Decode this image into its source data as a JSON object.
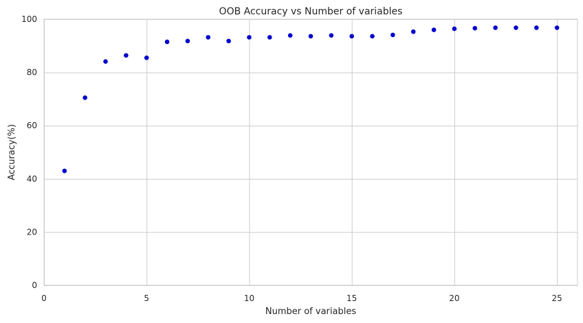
{
  "chart_data": {
    "type": "scatter",
    "title": "OOB Accuracy vs Number of variables",
    "xlabel": "Number of variables",
    "ylabel": "Accuracy(%)",
    "xlim": [
      0,
      26
    ],
    "ylim": [
      0,
      100
    ],
    "xticks": [
      0,
      5,
      10,
      15,
      20,
      25
    ],
    "yticks": [
      0,
      20,
      40,
      60,
      80,
      100
    ],
    "grid": true,
    "marker_color": "#0000cc",
    "x": [
      1,
      2,
      3,
      4,
      5,
      6,
      7,
      8,
      9,
      10,
      11,
      12,
      13,
      14,
      15,
      16,
      17,
      18,
      19,
      20,
      21,
      22,
      23,
      24,
      25
    ],
    "y": [
      43.0,
      70.5,
      84.1,
      86.4,
      85.5,
      91.5,
      91.8,
      93.2,
      91.8,
      93.2,
      93.2,
      93.9,
      93.6,
      93.9,
      93.6,
      93.6,
      94.1,
      95.3,
      96.0,
      96.4,
      96.6,
      96.8,
      96.8,
      96.8,
      96.8
    ]
  }
}
